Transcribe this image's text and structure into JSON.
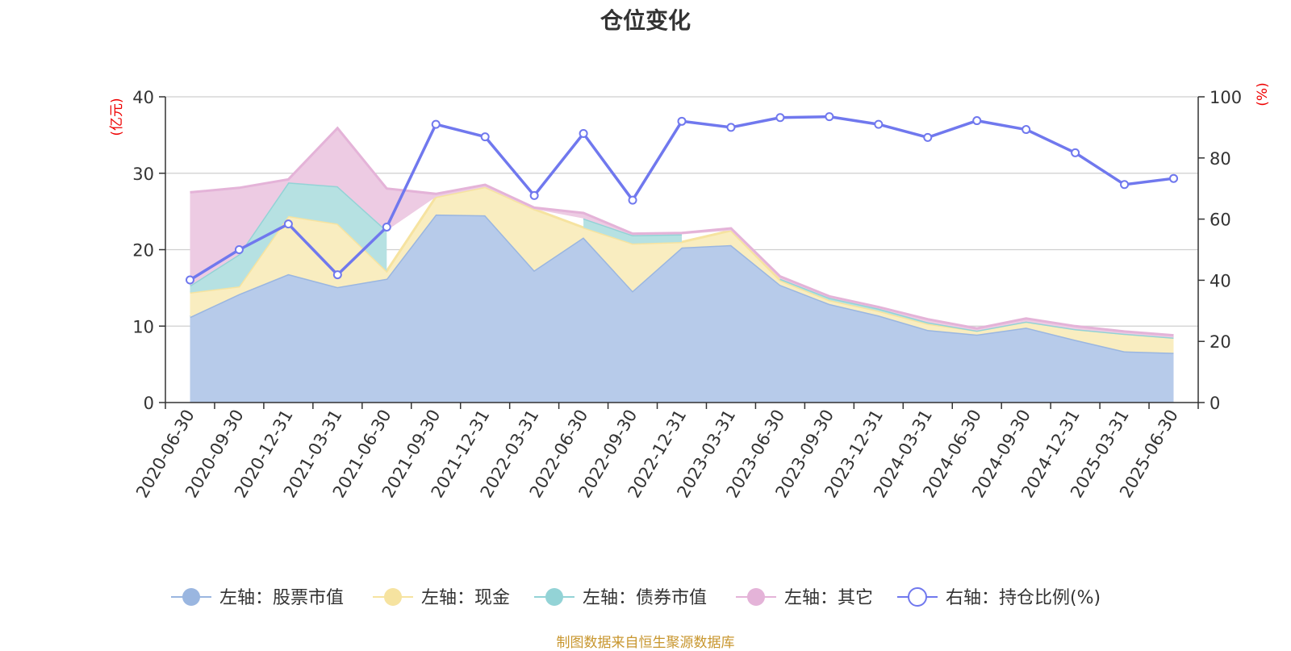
{
  "chart_data": {
    "type": "area",
    "title": "仓位变化",
    "footnote": "制图数据来自恒生聚源数据库",
    "left_axis": {
      "unit": "(亿元)",
      "ylim": [
        0,
        40
      ],
      "ticks": [
        "0",
        "10",
        "20",
        "30",
        "40"
      ]
    },
    "right_axis": {
      "unit": "(%)",
      "ylim": [
        0,
        100
      ],
      "ticks": [
        "0",
        "20",
        "40",
        "60",
        "80",
        "100"
      ]
    },
    "grid": true,
    "legend_position": "bottom",
    "categories": [
      "2020-06-30",
      "2020-09-30",
      "2020-12-31",
      "2021-03-31",
      "2021-06-30",
      "2021-09-30",
      "2021-12-31",
      "2022-03-31",
      "2022-06-30",
      "2022-09-30",
      "2022-12-31",
      "2023-03-31",
      "2023-06-30",
      "2023-09-30",
      "2023-12-31",
      "2024-03-31",
      "2024-06-30",
      "2024-09-30",
      "2024-12-31",
      "2025-03-31",
      "2025-06-30"
    ],
    "series": [
      {
        "name": "左轴：股票市值",
        "axis": "left",
        "color": "#9ab6e0",
        "fill": "#b7cbea",
        "values": [
          11.2,
          14.2,
          16.8,
          15.1,
          16.2,
          24.6,
          24.5,
          17.3,
          21.6,
          14.6,
          20.3,
          20.6,
          15.4,
          12.9,
          11.4,
          9.5,
          8.9,
          9.8,
          8.2,
          6.7,
          6.5
        ]
      },
      {
        "name": "左轴：现金",
        "axis": "left",
        "color": "#f6e3a0",
        "fill": "#f9edc0",
        "values": [
          3.2,
          1.0,
          7.6,
          8.3,
          1.0,
          2.3,
          3.7,
          8.0,
          1.3,
          6.2,
          0.7,
          1.9,
          0.6,
          0.5,
          0.6,
          0.8,
          0.5,
          0.8,
          1.4,
          2.3,
          2.0
        ]
      },
      {
        "name": "左轴：债券市值",
        "axis": "left",
        "color": "#93d3d6",
        "fill": "#b6e1e2",
        "values": [
          0.9,
          4.2,
          4.4,
          4.9,
          5.3,
          null,
          null,
          null,
          1.2,
          1.1,
          1.0,
          null,
          0.2,
          0.3,
          0.3,
          0.2,
          0.0,
          0.0,
          0.0,
          0.0,
          0.0
        ]
      },
      {
        "name": "左轴：其它",
        "axis": "left",
        "color": "#e4b3d8",
        "fill": "#edcbe3",
        "values": [
          12.2,
          8.7,
          0.4,
          7.6,
          5.5,
          0.4,
          0.3,
          0.2,
          0.7,
          0.2,
          0.2,
          0.3,
          0.3,
          0.2,
          0.2,
          0.4,
          0.3,
          0.4,
          0.4,
          0.3,
          0.3
        ]
      },
      {
        "name": "右轴：持仓比例(%)",
        "axis": "right",
        "color": "#7078ee",
        "values": [
          40.1,
          50.0,
          58.4,
          41.8,
          57.4,
          91.0,
          86.9,
          67.7,
          88.0,
          66.2,
          92.0,
          90.0,
          93.2,
          93.5,
          91.0,
          86.7,
          92.2,
          89.3,
          81.7,
          71.3,
          73.3
        ]
      }
    ]
  }
}
